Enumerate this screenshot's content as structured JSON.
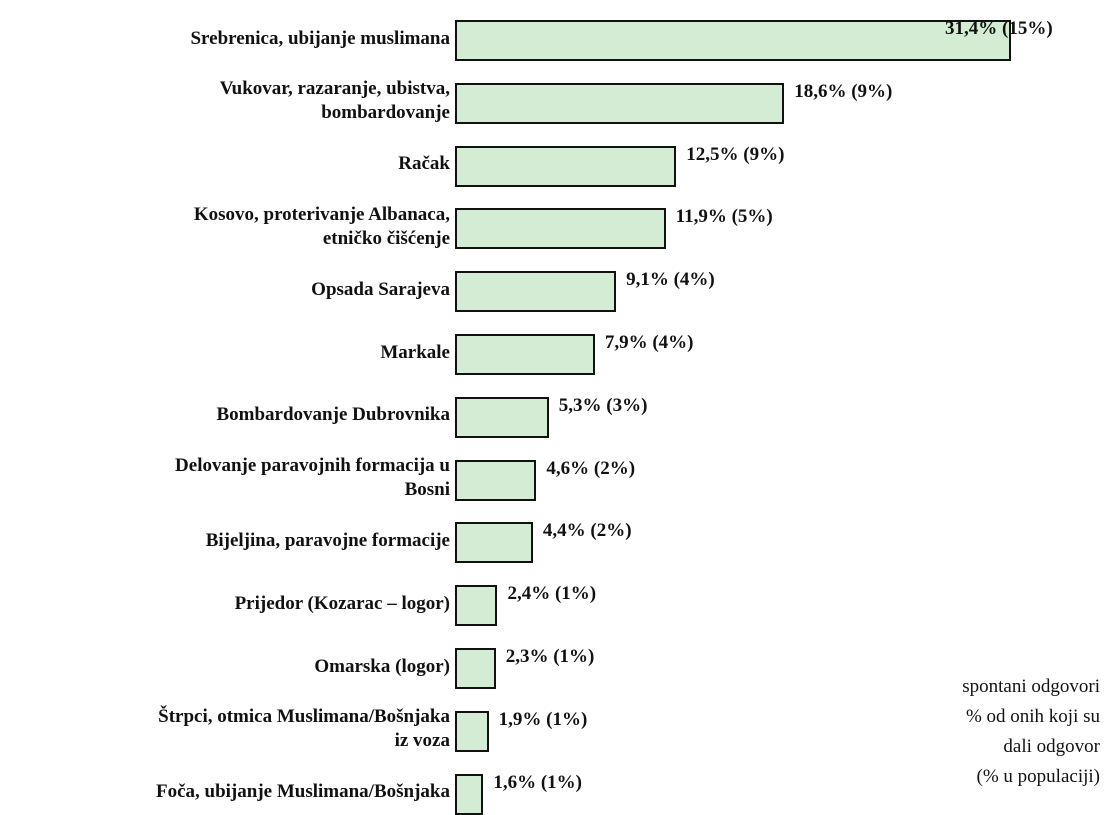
{
  "chart_data": {
    "type": "bar",
    "orientation": "horizontal",
    "categories": [
      "Srebrenica, ubijanje muslimana",
      "Vukovar, razaranje, ubistva,\nbombardovanje",
      "Račak",
      "Kosovo, proterivanje Albanaca,\netničko čišćenje",
      "Opsada Sarajeva",
      "Markale",
      "Bombardovanje Dubrovnika",
      "Delovanje paravojnih formacija u\nBosni",
      "Bijeljina, paravojne formacije",
      "Prijedor (Kozarac – logor)",
      "Omarska (logor)",
      "Štrpci, otmica Muslimana/Bošnjaka\niz voza",
      "Foča, ubijanje Muslimana/Bošnjaka"
    ],
    "values": [
      31.4,
      18.6,
      12.5,
      11.9,
      9.1,
      7.9,
      5.3,
      4.6,
      4.4,
      2.4,
      2.3,
      1.9,
      1.6
    ],
    "value_labels": [
      "31,4% (15%)",
      "18,6% (9%)",
      "12,5% (9%)",
      "11,9% (5%)",
      "9,1% (4%)",
      "7,9% (4%)",
      "5,3% (3%)",
      "4,6% (2%)",
      "4,4% (2%)",
      "2,4% (1%)",
      "2,3% (1%)",
      "1,9% (1%)",
      "1,6% (1%)"
    ],
    "color": "#d5ecd4",
    "note": [
      "spontani odgovori",
      "% od onih koji su",
      "dali odgovor",
      "(% u populaciji)"
    ]
  }
}
